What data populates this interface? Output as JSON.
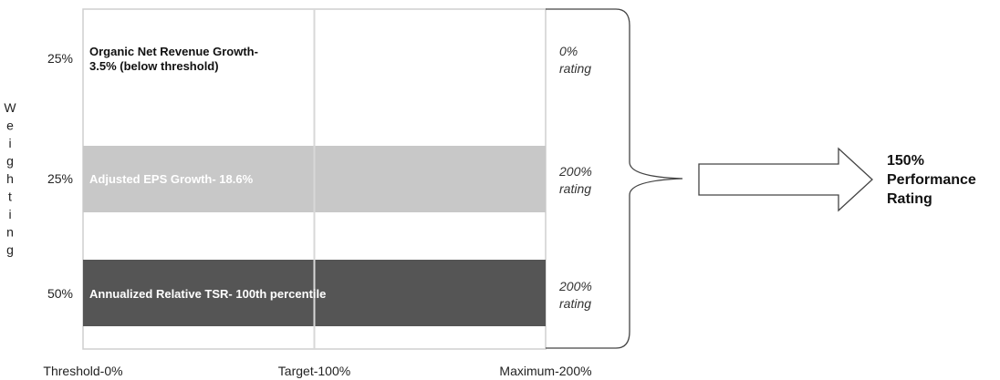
{
  "chart_data": {
    "type": "bar",
    "orientation": "horizontal",
    "ylabel": "Weighting",
    "xlim": [
      0,
      200
    ],
    "grid": true,
    "x_ticks": [
      {
        "value": 0,
        "label": "Threshold-0%"
      },
      {
        "value": 100,
        "label": "Target-100%"
      },
      {
        "value": 200,
        "label": "Maximum-200%"
      }
    ],
    "categories": [
      {
        "weight": "25%",
        "metric": "Organic Net Revenue Growth- 3.5% (below threshold)",
        "metric_lines": [
          "Organic Net Revenue Growth-",
          "3.5% (below threshold)"
        ],
        "value": 0,
        "rating_lines": [
          "0%",
          "rating"
        ],
        "color": "#ffffff",
        "text_style": "dark"
      },
      {
        "weight": "25%",
        "metric": "Adjusted EPS Growth- 18.6%",
        "metric_lines": [
          "Adjusted EPS Growth- 18.6%"
        ],
        "value": 200,
        "rating_lines": [
          "200%",
          "rating"
        ],
        "color": "#c8c8c8",
        "text_style": "light"
      },
      {
        "weight": "50%",
        "metric": "Annualized Relative TSR- 100th percentile",
        "metric_lines": [
          "Annualized Relative TSR- 100th percentile"
        ],
        "value": 200,
        "rating_lines": [
          "200%",
          "rating"
        ],
        "color": "#555555",
        "text_style": "light"
      }
    ],
    "result_lines": [
      "150%",
      "Performance",
      "Rating"
    ]
  }
}
